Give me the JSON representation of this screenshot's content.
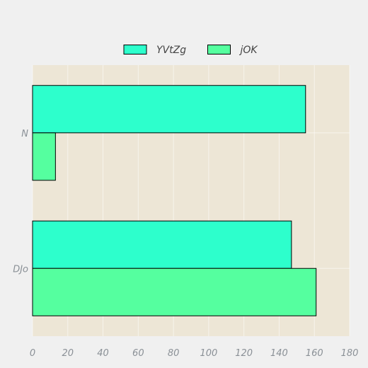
{
  "chart_data": {
    "type": "bar",
    "orientation": "horizontal",
    "categories": [
      "N",
      "DJo"
    ],
    "series": [
      {
        "name": "YVtZg",
        "values": [
          155,
          147
        ],
        "color": "#2dffcc"
      },
      {
        "name": "jOK",
        "values": [
          13,
          161
        ],
        "color": "#55ff9f"
      }
    ],
    "xlim": [
      0,
      180
    ],
    "xticks": [
      0,
      20,
      40,
      60,
      80,
      100,
      120,
      140,
      160,
      180
    ],
    "grid": true,
    "legend_position": "top-center",
    "plot_background": "#ede6d6",
    "page_background": "#f0f0f0"
  }
}
